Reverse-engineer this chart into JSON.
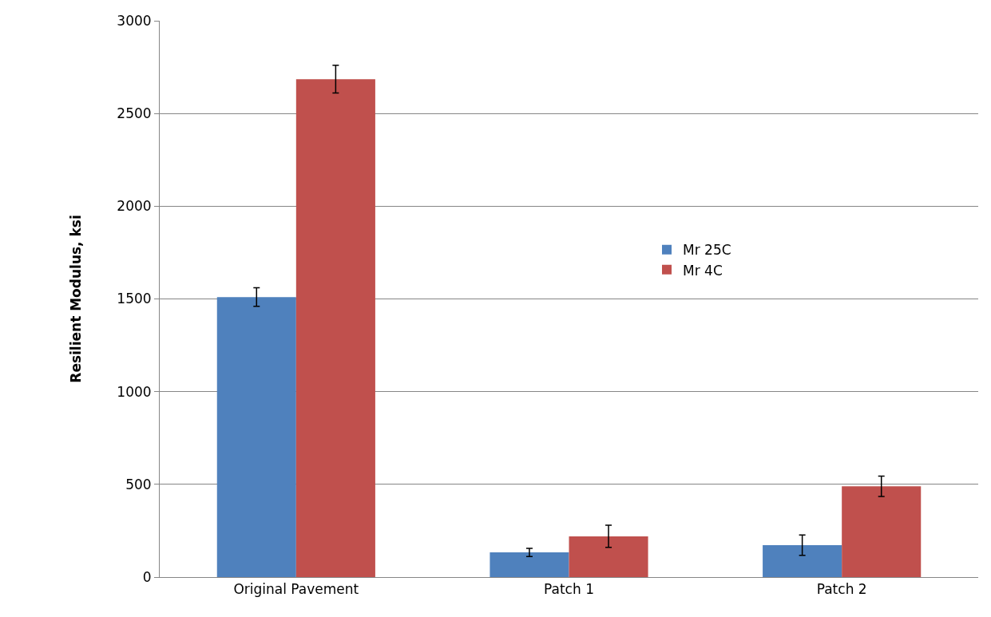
{
  "chart_data": {
    "type": "bar",
    "ylabel": "Resilient Modulus, ksi",
    "categories": [
      "Original Pavement",
      "Patch 1",
      "Patch 2"
    ],
    "series": [
      {
        "name": "Mr 25C",
        "color": "#4f81bd",
        "values": [
          1510,
          133,
          172
        ],
        "errors": [
          50,
          22,
          55
        ]
      },
      {
        "name": "Mr 4C",
        "color": "#c0504d",
        "values": [
          2685,
          220,
          490
        ],
        "errors": [
          75,
          60,
          55
        ]
      }
    ],
    "ylim": [
      0,
      3000
    ],
    "yticks": [
      0,
      500,
      1000,
      1500,
      2000,
      2500,
      3000
    ],
    "grid": "y",
    "legend": "right"
  }
}
